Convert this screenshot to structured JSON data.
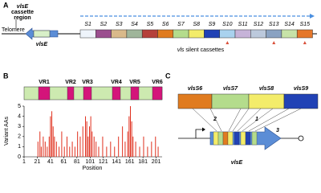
{
  "panel_a": {
    "label": "A",
    "region_label": [
      "vlsE",
      "cassette",
      "region"
    ],
    "telomere": "Telomere",
    "expressed_locus": "vlsE",
    "cassettes": [
      "S1",
      "S2",
      "S3",
      "S4",
      "S5",
      "S6",
      "S7",
      "S8",
      "S9",
      "S10",
      "S11",
      "S12",
      "S13",
      "S14",
      "S15"
    ],
    "silent_label": [
      "vls",
      "silent cassettes"
    ]
  },
  "panel_b": {
    "label": "B",
    "regions": [
      "VR1",
      "VR2",
      "VR3",
      "VR4",
      "VR5",
      "VR6"
    ]
  },
  "chart_data": {
    "type": "bar",
    "ylabel": "Variant AAs",
    "xlabel": "Position",
    "color": "#e0301e",
    "x": [
      22,
      25,
      27,
      30,
      33,
      36,
      39,
      41,
      43,
      45,
      47,
      50,
      54,
      58,
      62,
      66,
      70,
      74,
      78,
      82,
      86,
      90,
      94,
      96,
      98,
      100,
      102,
      104,
      107,
      110,
      114,
      120,
      126,
      132,
      138,
      144,
      150,
      154,
      158,
      160,
      162,
      164,
      166,
      170,
      176,
      182,
      188,
      194,
      200,
      204
    ],
    "values": [
      1.5,
      2.5,
      1,
      2,
      1.5,
      1,
      2,
      4,
      4.5,
      3,
      2,
      1.5,
      1,
      2.5,
      1,
      2,
      1,
      1.5,
      1,
      2.5,
      2,
      3,
      4,
      3.5,
      2,
      3,
      4,
      2.5,
      2,
      1.5,
      1,
      2,
      1,
      1.5,
      1,
      2,
      3,
      1.5,
      2.5,
      4,
      5,
      3.5,
      2,
      1.5,
      1,
      2,
      1,
      1.5,
      2,
      1
    ],
    "xlim": [
      1,
      210
    ],
    "ylim": [
      0,
      5
    ],
    "xticks": [
      1,
      21,
      41,
      61,
      81,
      101,
      121,
      141,
      161,
      181,
      201
    ],
    "yticks": [
      0,
      1,
      2,
      3,
      4,
      5
    ]
  },
  "panel_c": {
    "label": "C",
    "cassettes": [
      "vlsS6",
      "vlsS7",
      "vlsS8",
      "vlsS9"
    ],
    "events": [
      "2",
      "1",
      "3"
    ],
    "gene": "vlsE"
  }
}
